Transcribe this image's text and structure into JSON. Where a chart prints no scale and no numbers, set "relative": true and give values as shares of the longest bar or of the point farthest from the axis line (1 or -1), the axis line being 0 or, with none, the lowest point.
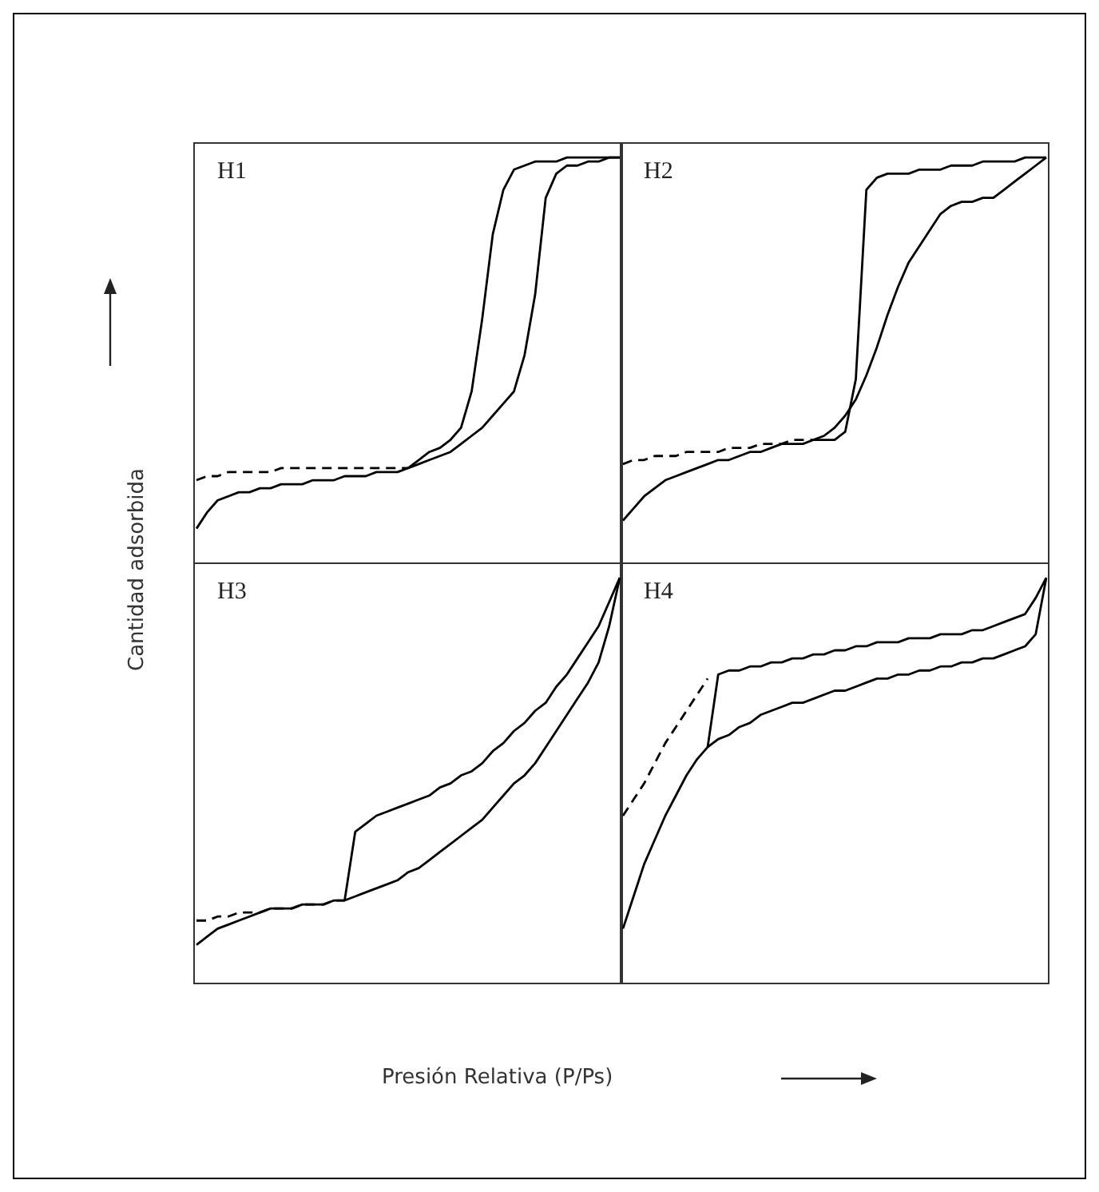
{
  "chart_data": [
    {
      "type": "line",
      "title": "H1",
      "ylabel": "Cantidad adsorbida",
      "relative": true,
      "marker": "none",
      "categories": [
        null,
        null,
        null,
        null,
        null,
        null,
        null,
        null,
        null,
        null,
        null,
        null,
        null,
        null,
        null,
        null,
        null,
        null,
        null,
        null,
        null,
        null,
        null,
        null,
        null,
        null,
        null,
        null,
        null,
        null,
        null,
        null,
        null,
        null,
        null,
        null,
        null,
        null,
        null,
        null,
        null
      ],
      "series": [
        {
          "color": "#000000",
          "line_style": "solid",
          "values": [
            0.08,
            0.12,
            0.15,
            0.16,
            0.17,
            0.17,
            0.18,
            0.18,
            0.19,
            0.19,
            0.19,
            0.2,
            0.2,
            0.2,
            0.21,
            0.21,
            0.21,
            0.22,
            0.22,
            0.22,
            0.23,
            0.24,
            0.25,
            0.26,
            0.27,
            0.29,
            0.31,
            0.33,
            0.36,
            0.39,
            0.42,
            0.51,
            0.66,
            0.9,
            0.96,
            0.98,
            0.98,
            0.99,
            0.99,
            1.0,
            1.0
          ]
        },
        {
          "color": "#000000",
          "line_style": "solid",
          "values": [
            null,
            null,
            null,
            null,
            null,
            null,
            null,
            null,
            null,
            null,
            null,
            null,
            null,
            null,
            null,
            null,
            null,
            null,
            null,
            null,
            0.23,
            0.25,
            0.27,
            0.28,
            0.3,
            0.33,
            0.42,
            0.6,
            0.81,
            0.92,
            0.97,
            0.98,
            0.99,
            0.99,
            0.99,
            1.0,
            1.0,
            1.0,
            1.0,
            1.0,
            1.0
          ]
        },
        {
          "color": "#000000",
          "line_style": "dashed",
          "values": [
            0.2,
            0.21,
            0.21,
            0.22,
            0.22,
            0.22,
            0.22,
            0.22,
            0.23,
            0.23,
            0.23,
            0.23,
            0.23,
            0.23,
            0.23,
            0.23,
            0.23,
            0.23,
            0.23,
            0.23,
            0.23,
            null,
            null,
            null,
            null,
            null,
            null,
            null,
            null,
            null,
            null,
            null,
            null,
            null,
            null,
            null,
            null,
            null,
            null,
            null,
            null
          ]
        }
      ]
    },
    {
      "type": "line",
      "title": "H2",
      "relative": true,
      "marker": "none",
      "categories": [
        null,
        null,
        null,
        null,
        null,
        null,
        null,
        null,
        null,
        null,
        null,
        null,
        null,
        null,
        null,
        null,
        null,
        null,
        null,
        null,
        null,
        null,
        null,
        null,
        null,
        null,
        null,
        null,
        null,
        null,
        null,
        null,
        null,
        null,
        null,
        null,
        null,
        null,
        null,
        null,
        null
      ],
      "series": [
        {
          "color": "#000000",
          "line_style": "solid",
          "values": [
            0.1,
            0.13,
            0.16,
            0.18,
            0.2,
            0.21,
            0.22,
            0.23,
            0.24,
            0.25,
            0.25,
            0.26,
            0.27,
            0.27,
            0.28,
            0.29,
            0.29,
            0.29,
            0.3,
            0.31,
            0.33,
            0.36,
            0.4,
            0.46,
            0.53,
            0.61,
            0.68,
            0.74,
            0.78,
            0.82,
            0.86,
            0.88,
            0.89,
            0.89,
            0.9,
            0.9,
            0.92,
            0.94,
            0.96,
            0.98,
            1.0
          ]
        },
        {
          "color": "#000000",
          "line_style": "solid",
          "values": [
            null,
            null,
            null,
            null,
            null,
            null,
            null,
            null,
            null,
            null,
            null,
            null,
            null,
            null,
            null,
            null,
            null,
            null,
            0.3,
            0.3,
            0.3,
            0.32,
            0.45,
            0.92,
            0.95,
            0.96,
            0.96,
            0.96,
            0.97,
            0.97,
            0.97,
            0.98,
            0.98,
            0.98,
            0.99,
            0.99,
            0.99,
            0.99,
            1.0,
            1.0,
            1.0
          ]
        },
        {
          "color": "#000000",
          "line_style": "dashed",
          "values": [
            0.24,
            0.25,
            0.25,
            0.26,
            0.26,
            0.26,
            0.27,
            0.27,
            0.27,
            0.27,
            0.28,
            0.28,
            0.28,
            0.29,
            0.29,
            0.29,
            0.3,
            0.3,
            0.3,
            null,
            null,
            null,
            null,
            null,
            null,
            null,
            null,
            null,
            null,
            null,
            null,
            null,
            null,
            null,
            null,
            null,
            null,
            null,
            null,
            null,
            null
          ]
        }
      ]
    },
    {
      "type": "line",
      "title": "H3",
      "xlabel": "Presión Relativa (P/Ps)",
      "relative": true,
      "marker": "none",
      "categories": [
        null,
        null,
        null,
        null,
        null,
        null,
        null,
        null,
        null,
        null,
        null,
        null,
        null,
        null,
        null,
        null,
        null,
        null,
        null,
        null,
        null,
        null,
        null,
        null,
        null,
        null,
        null,
        null,
        null,
        null,
        null,
        null,
        null,
        null,
        null,
        null,
        null,
        null,
        null,
        null,
        null
      ],
      "series": [
        {
          "color": "#000000",
          "line_style": "solid",
          "values": [
            0.09,
            0.11,
            0.13,
            0.14,
            0.15,
            0.16,
            0.17,
            0.18,
            0.18,
            0.18,
            0.19,
            0.19,
            0.19,
            0.2,
            0.2,
            0.21,
            0.22,
            0.23,
            0.24,
            0.25,
            0.27,
            0.28,
            0.3,
            0.32,
            0.34,
            0.36,
            0.38,
            0.4,
            0.43,
            0.46,
            0.49,
            0.51,
            0.54,
            0.58,
            0.62,
            0.66,
            0.7,
            0.74,
            0.79,
            0.88,
            1.0
          ]
        },
        {
          "color": "#000000",
          "line_style": "solid",
          "values": [
            null,
            null,
            null,
            null,
            null,
            null,
            null,
            null,
            null,
            null,
            null,
            null,
            null,
            null,
            0.2,
            0.37,
            0.39,
            0.41,
            0.42,
            0.43,
            0.44,
            0.45,
            0.46,
            0.48,
            0.49,
            0.51,
            0.52,
            0.54,
            0.57,
            0.59,
            0.62,
            0.64,
            0.67,
            0.69,
            0.73,
            0.76,
            0.8,
            0.84,
            0.88,
            0.94,
            1.0
          ]
        },
        {
          "color": "#000000",
          "line_style": "dashed",
          "values": [
            0.15,
            0.15,
            0.16,
            0.16,
            0.17,
            0.17,
            0.17,
            0.18,
            0.18,
            0.18,
            0.19,
            0.19,
            0.19,
            0.2,
            0.2,
            null,
            null,
            null,
            null,
            null,
            null,
            null,
            null,
            null,
            null,
            null,
            null,
            null,
            null,
            null,
            null,
            null,
            null,
            null,
            null,
            null,
            null,
            null,
            null,
            null,
            null
          ]
        }
      ]
    },
    {
      "type": "line",
      "title": "H4",
      "relative": true,
      "marker": "none",
      "categories": [
        null,
        null,
        null,
        null,
        null,
        null,
        null,
        null,
        null,
        null,
        null,
        null,
        null,
        null,
        null,
        null,
        null,
        null,
        null,
        null,
        null,
        null,
        null,
        null,
        null,
        null,
        null,
        null,
        null,
        null,
        null,
        null,
        null,
        null,
        null,
        null,
        null,
        null,
        null,
        null,
        null
      ],
      "series": [
        {
          "color": "#000000",
          "line_style": "solid",
          "values": [
            0.13,
            0.21,
            0.29,
            0.35,
            0.41,
            0.46,
            0.51,
            0.55,
            0.58,
            0.6,
            0.61,
            0.63,
            0.64,
            0.66,
            0.67,
            0.68,
            0.69,
            0.69,
            0.7,
            0.71,
            0.72,
            0.72,
            0.73,
            0.74,
            0.75,
            0.75,
            0.76,
            0.76,
            0.77,
            0.77,
            0.78,
            0.78,
            0.79,
            0.79,
            0.8,
            0.8,
            0.81,
            0.82,
            0.83,
            0.86,
            1.0
          ]
        },
        {
          "color": "#000000",
          "line_style": "solid",
          "values": [
            null,
            null,
            null,
            null,
            null,
            null,
            null,
            null,
            0.58,
            0.76,
            0.77,
            0.77,
            0.78,
            0.78,
            0.79,
            0.79,
            0.8,
            0.8,
            0.81,
            0.81,
            0.82,
            0.82,
            0.83,
            0.83,
            0.84,
            0.84,
            0.84,
            0.85,
            0.85,
            0.85,
            0.86,
            0.86,
            0.86,
            0.87,
            0.87,
            0.88,
            0.89,
            0.9,
            0.91,
            0.95,
            1.0
          ]
        },
        {
          "color": "#000000",
          "line_style": "dashed",
          "values": [
            0.41,
            0.45,
            0.49,
            0.54,
            0.59,
            0.63,
            0.67,
            0.71,
            0.75,
            null,
            null,
            null,
            null,
            null,
            null,
            null,
            null,
            null,
            null,
            null,
            null,
            null,
            null,
            null,
            null,
            null,
            null,
            null,
            null,
            null,
            null,
            null,
            null,
            null,
            null,
            null,
            null,
            null,
            null,
            null,
            null
          ]
        }
      ]
    }
  ]
}
